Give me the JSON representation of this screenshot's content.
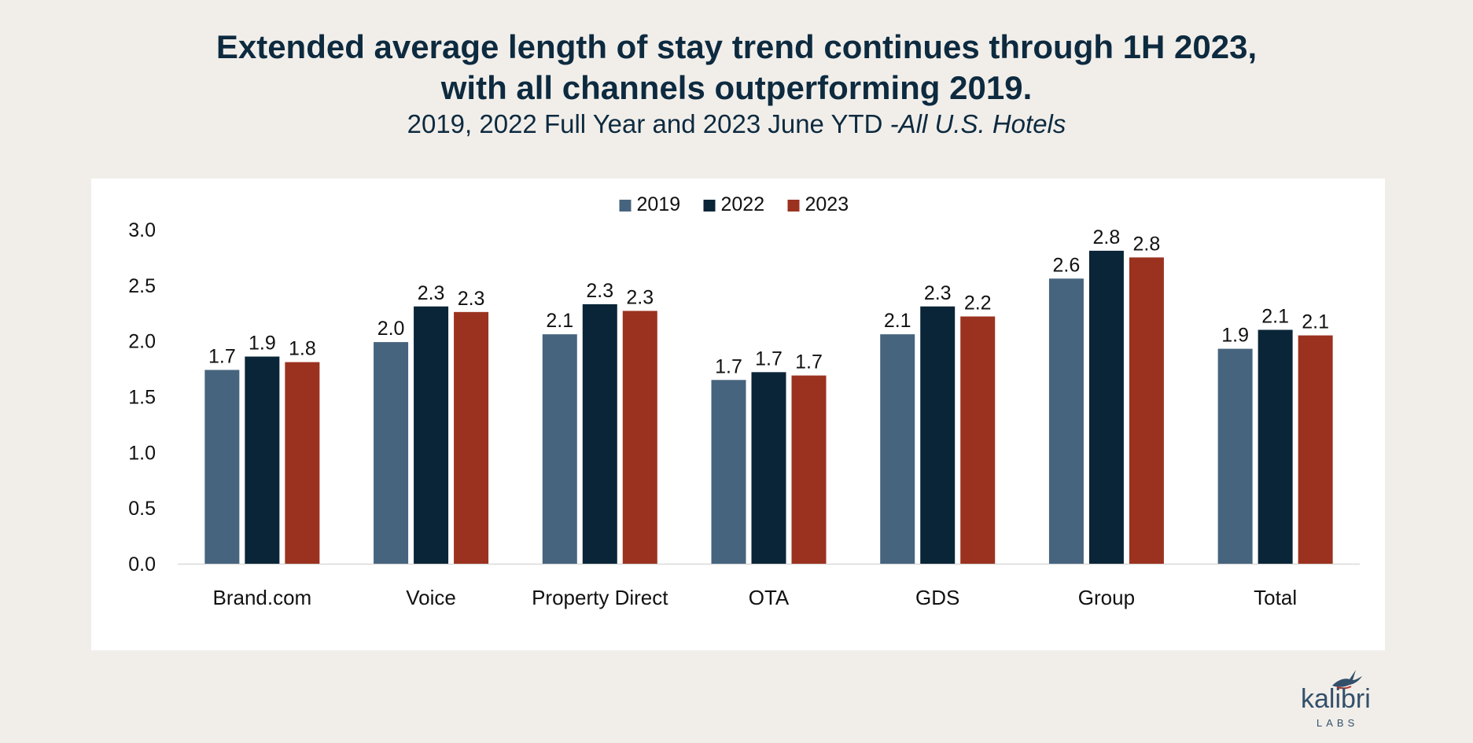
{
  "header": {
    "title_line1": "Extended average length of stay trend continues through 1H 2023,",
    "title_line2": "with all channels outperforming 2019.",
    "subtitle_main": "2019, 2022 Full Year and 2023 June YTD ",
    "subtitle_italic": "-All U.S. Hotels"
  },
  "chart_data": {
    "type": "bar",
    "title": "Extended average length of stay trend continues through 1H 2023, with all channels outperforming 2019.",
    "subtitle": "2019, 2022 Full Year and 2023 June YTD -All U.S. Hotels",
    "categories": [
      "Brand.com",
      "Voice",
      "Property Direct",
      "OTA",
      "GDS",
      "Group",
      "Total"
    ],
    "series": [
      {
        "name": "2019",
        "color": "#46647e",
        "values": [
          1.74,
          1.99,
          2.06,
          1.65,
          2.06,
          2.56,
          1.93
        ],
        "labels": [
          "1.7",
          "2.0",
          "2.1",
          "1.7",
          "2.1",
          "2.6",
          "1.9"
        ]
      },
      {
        "name": "2022",
        "color": "#0a2538",
        "values": [
          1.86,
          2.31,
          2.33,
          1.72,
          2.31,
          2.81,
          2.1
        ],
        "labels": [
          "1.9",
          "2.3",
          "2.3",
          "1.7",
          "2.3",
          "2.8",
          "2.1"
        ]
      },
      {
        "name": "2023",
        "color": "#9b321f",
        "values": [
          1.81,
          2.26,
          2.27,
          1.69,
          2.22,
          2.75,
          2.05
        ],
        "labels": [
          "1.8",
          "2.3",
          "2.3",
          "1.7",
          "2.2",
          "2.8",
          "2.1"
        ]
      }
    ],
    "ylim": [
      0,
      3.0
    ],
    "yticks": [
      "0.0",
      "0.5",
      "1.0",
      "1.5",
      "2.0",
      "2.5",
      "3.0"
    ],
    "ytick_values": [
      0,
      0.5,
      1.0,
      1.5,
      2.0,
      2.5,
      3.0
    ],
    "xlabel": "",
    "ylabel": "",
    "legend_position": "top-center",
    "grid": false
  },
  "logo": {
    "word": "kalibri",
    "sub": "LABS"
  }
}
